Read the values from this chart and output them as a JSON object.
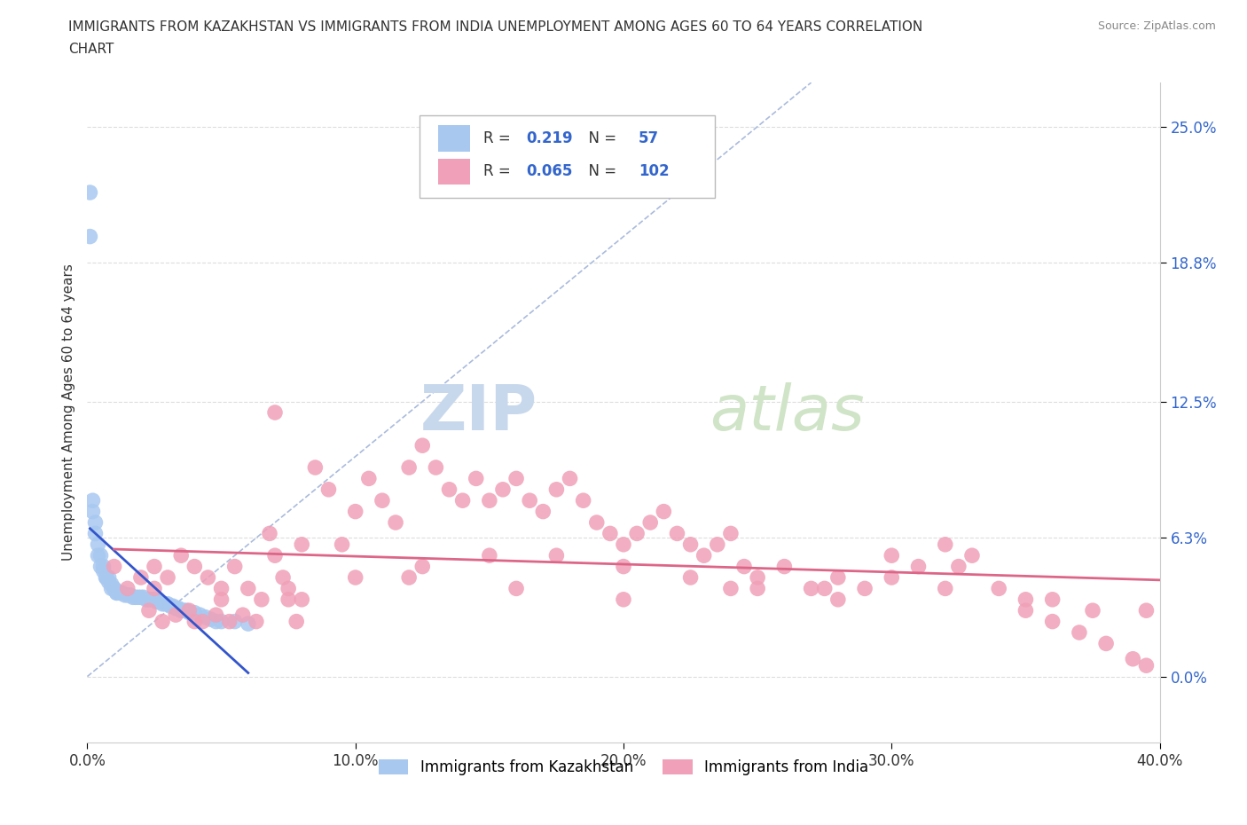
{
  "title_line1": "IMMIGRANTS FROM KAZAKHSTAN VS IMMIGRANTS FROM INDIA UNEMPLOYMENT AMONG AGES 60 TO 64 YEARS CORRELATION",
  "title_line2": "CHART",
  "source": "Source: ZipAtlas.com",
  "ylabel": "Unemployment Among Ages 60 to 64 years",
  "xmin": 0.0,
  "xmax": 0.4,
  "ymin": -0.03,
  "ymax": 0.27,
  "yticks": [
    0.0,
    0.063,
    0.125,
    0.188,
    0.25
  ],
  "ytick_labels": [
    "0.0%",
    "6.3%",
    "12.5%",
    "18.8%",
    "25.0%"
  ],
  "xticks": [
    0.0,
    0.1,
    0.2,
    0.3,
    0.4
  ],
  "xtick_labels": [
    "0.0%",
    "10.0%",
    "20.0%",
    "30.0%",
    "40.0%"
  ],
  "kazakhstan_color": "#a8c8f0",
  "india_color": "#f0a0b8",
  "kazakhstan_line_color": "#3355cc",
  "india_line_color": "#dd6688",
  "diagonal_color": "#aabbdd",
  "R_kazakhstan": 0.219,
  "N_kazakhstan": 57,
  "R_india": 0.065,
  "N_india": 102,
  "legend_color": "#3366cc",
  "background_color": "#ffffff",
  "watermark_zip": "ZIP",
  "watermark_atlas": "atlas",
  "kazakhstan_x": [
    0.001,
    0.001,
    0.002,
    0.002,
    0.003,
    0.003,
    0.004,
    0.004,
    0.005,
    0.005,
    0.006,
    0.006,
    0.007,
    0.007,
    0.008,
    0.008,
    0.009,
    0.009,
    0.01,
    0.01,
    0.011,
    0.011,
    0.012,
    0.013,
    0.014,
    0.015,
    0.016,
    0.017,
    0.018,
    0.019,
    0.02,
    0.021,
    0.022,
    0.023,
    0.024,
    0.025,
    0.026,
    0.027,
    0.028,
    0.029,
    0.03,
    0.031,
    0.032,
    0.033,
    0.034,
    0.035,
    0.036,
    0.037,
    0.038,
    0.04,
    0.042,
    0.044,
    0.046,
    0.048,
    0.05,
    0.055,
    0.06
  ],
  "kazakhstan_y": [
    0.22,
    0.2,
    0.08,
    0.075,
    0.07,
    0.065,
    0.06,
    0.055,
    0.055,
    0.05,
    0.05,
    0.048,
    0.045,
    0.045,
    0.045,
    0.043,
    0.042,
    0.04,
    0.04,
    0.04,
    0.038,
    0.038,
    0.038,
    0.038,
    0.037,
    0.037,
    0.037,
    0.036,
    0.036,
    0.036,
    0.036,
    0.036,
    0.035,
    0.035,
    0.035,
    0.035,
    0.034,
    0.034,
    0.033,
    0.033,
    0.033,
    0.032,
    0.032,
    0.031,
    0.031,
    0.03,
    0.03,
    0.03,
    0.029,
    0.029,
    0.028,
    0.027,
    0.026,
    0.025,
    0.025,
    0.025,
    0.024
  ],
  "india_x": [
    0.01,
    0.015,
    0.02,
    0.023,
    0.025,
    0.028,
    0.03,
    0.033,
    0.035,
    0.038,
    0.04,
    0.043,
    0.045,
    0.048,
    0.05,
    0.053,
    0.055,
    0.058,
    0.06,
    0.063,
    0.065,
    0.068,
    0.07,
    0.073,
    0.075,
    0.078,
    0.08,
    0.085,
    0.09,
    0.095,
    0.1,
    0.105,
    0.11,
    0.115,
    0.12,
    0.125,
    0.13,
    0.135,
    0.14,
    0.145,
    0.15,
    0.155,
    0.16,
    0.165,
    0.17,
    0.175,
    0.18,
    0.185,
    0.19,
    0.195,
    0.2,
    0.205,
    0.21,
    0.215,
    0.22,
    0.225,
    0.23,
    0.235,
    0.24,
    0.245,
    0.25,
    0.26,
    0.27,
    0.28,
    0.29,
    0.3,
    0.31,
    0.32,
    0.33,
    0.34,
    0.35,
    0.36,
    0.37,
    0.38,
    0.39,
    0.395,
    0.025,
    0.05,
    0.075,
    0.1,
    0.125,
    0.15,
    0.175,
    0.2,
    0.225,
    0.25,
    0.275,
    0.3,
    0.325,
    0.35,
    0.375,
    0.04,
    0.08,
    0.12,
    0.16,
    0.2,
    0.24,
    0.28,
    0.32,
    0.36,
    0.395,
    0.07
  ],
  "india_y": [
    0.05,
    0.04,
    0.045,
    0.03,
    0.05,
    0.025,
    0.045,
    0.028,
    0.055,
    0.03,
    0.05,
    0.025,
    0.045,
    0.028,
    0.04,
    0.025,
    0.05,
    0.028,
    0.04,
    0.025,
    0.035,
    0.065,
    0.055,
    0.045,
    0.035,
    0.025,
    0.06,
    0.095,
    0.085,
    0.06,
    0.075,
    0.09,
    0.08,
    0.07,
    0.095,
    0.105,
    0.095,
    0.085,
    0.08,
    0.09,
    0.08,
    0.085,
    0.09,
    0.08,
    0.075,
    0.085,
    0.09,
    0.08,
    0.07,
    0.065,
    0.06,
    0.065,
    0.07,
    0.075,
    0.065,
    0.06,
    0.055,
    0.06,
    0.065,
    0.05,
    0.045,
    0.05,
    0.04,
    0.045,
    0.04,
    0.055,
    0.05,
    0.06,
    0.055,
    0.04,
    0.03,
    0.025,
    0.02,
    0.015,
    0.008,
    0.005,
    0.04,
    0.035,
    0.04,
    0.045,
    0.05,
    0.055,
    0.055,
    0.05,
    0.045,
    0.04,
    0.04,
    0.045,
    0.05,
    0.035,
    0.03,
    0.025,
    0.035,
    0.045,
    0.04,
    0.035,
    0.04,
    0.035,
    0.04,
    0.035,
    0.03,
    0.12
  ]
}
